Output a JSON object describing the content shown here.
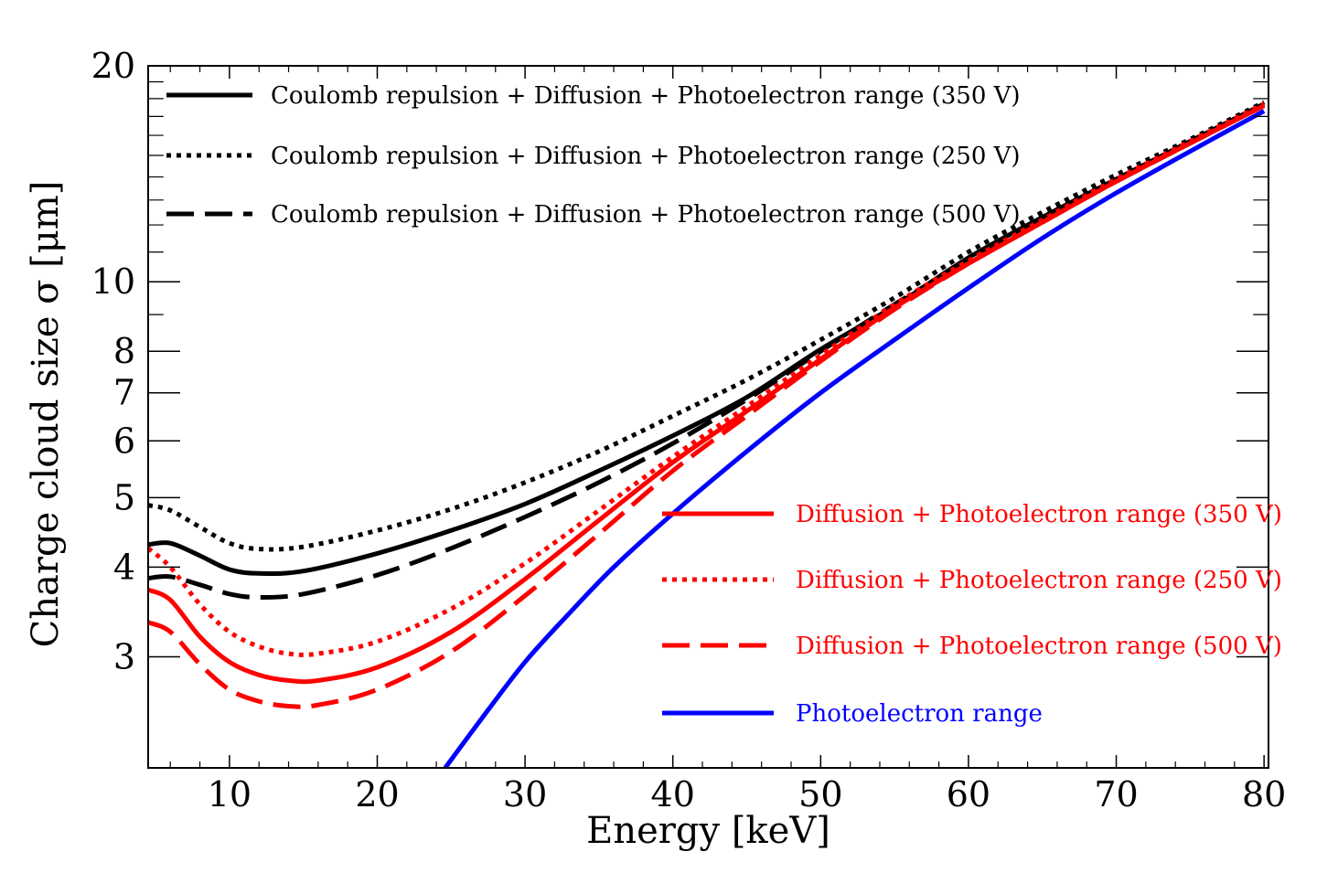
{
  "chart_data": {
    "type": "line",
    "xlabel": "Energy [keV]",
    "ylabel": "Charge cloud size σ [μm]",
    "xlim": [
      4.5,
      80.3
    ],
    "ylim": [
      2.1,
      20
    ],
    "yscale": "log",
    "grid": false,
    "legend_placement": [
      "upper-left",
      "lower-right"
    ],
    "x_ticks": [
      10,
      20,
      30,
      40,
      50,
      60,
      70,
      80
    ],
    "x_tick_labels": [
      "10",
      "20",
      "30",
      "40",
      "50",
      "60",
      "70",
      "80"
    ],
    "y_ticks": [
      3,
      4,
      5,
      6,
      7,
      8,
      10,
      20
    ],
    "y_tick_labels": [
      "3",
      "4",
      "5",
      "6",
      "7",
      "8",
      "10",
      "20"
    ],
    "series": [
      {
        "name": "Coulomb repulsion + Diffusion + Photoelectron range (350 V)",
        "color": "#000000",
        "dash": "solid",
        "legend_group": 0,
        "x": [
          4.5,
          6,
          8,
          10,
          12,
          15,
          20,
          25,
          30,
          35,
          40,
          45,
          50,
          55,
          60,
          65,
          70,
          75,
          80
        ],
        "y": [
          4.3,
          4.32,
          4.15,
          3.97,
          3.92,
          3.95,
          4.18,
          4.5,
          4.9,
          5.45,
          6.1,
          6.9,
          8.05,
          9.25,
          10.8,
          12.3,
          13.9,
          15.7,
          17.7
        ]
      },
      {
        "name": "Coulomb repulsion + Diffusion + Photoelectron range (250 V)",
        "color": "#000000",
        "dash": "dotted",
        "legend_group": 0,
        "x": [
          4.5,
          6,
          8,
          10,
          12,
          15,
          20,
          25,
          30,
          35,
          40,
          45,
          50,
          55,
          60,
          65,
          70,
          75,
          80
        ],
        "y": [
          4.88,
          4.8,
          4.55,
          4.32,
          4.24,
          4.27,
          4.5,
          4.82,
          5.25,
          5.8,
          6.5,
          7.3,
          8.3,
          9.5,
          11.0,
          12.5,
          14.1,
          15.8,
          17.8
        ]
      },
      {
        "name": "Coulomb repulsion + Diffusion + Photoelectron range (500 V)",
        "color": "#000000",
        "dash": "longdash",
        "legend_group": 0,
        "x": [
          4.5,
          6,
          8,
          10,
          12,
          15,
          20,
          25,
          30,
          35,
          40,
          45,
          50,
          55,
          60,
          65,
          70,
          75,
          80
        ],
        "y": [
          3.86,
          3.88,
          3.78,
          3.67,
          3.63,
          3.67,
          3.9,
          4.25,
          4.7,
          5.25,
          5.95,
          6.85,
          8.0,
          9.3,
          10.7,
          12.2,
          13.8,
          15.6,
          17.6
        ]
      },
      {
        "name": "Diffusion + Photoelectron range (350 V)",
        "color": "#ff0000",
        "dash": "solid",
        "legend_group": 1,
        "x": [
          4.5,
          6,
          8,
          10,
          12,
          14,
          16,
          20,
          25,
          30,
          35,
          40,
          45,
          50,
          55,
          60,
          65,
          70,
          75,
          80
        ],
        "y": [
          3.72,
          3.6,
          3.2,
          2.95,
          2.83,
          2.78,
          2.78,
          2.9,
          3.25,
          3.85,
          4.65,
          5.6,
          6.6,
          7.8,
          9.2,
          10.6,
          12.1,
          13.8,
          15.6,
          17.6
        ]
      },
      {
        "name": "Diffusion + Photoelectron range (250 V)",
        "color": "#ff0000",
        "dash": "dotted",
        "legend_group": 1,
        "x": [
          4.5,
          6,
          8,
          10,
          12,
          14,
          16,
          20,
          25,
          30,
          35,
          40,
          45,
          50,
          55,
          60,
          65,
          70,
          75,
          80
        ],
        "y": [
          4.25,
          4.0,
          3.55,
          3.25,
          3.1,
          3.03,
          3.03,
          3.15,
          3.5,
          4.05,
          4.8,
          5.7,
          6.7,
          7.9,
          9.3,
          10.7,
          12.2,
          13.9,
          15.7,
          17.7
        ]
      },
      {
        "name": "Diffusion + Photoelectron range (500 V)",
        "color": "#ff0000",
        "dash": "longdash",
        "legend_group": 1,
        "x": [
          4.5,
          6,
          8,
          10,
          12,
          14,
          16,
          20,
          25,
          30,
          35,
          40,
          45,
          50,
          55,
          60,
          65,
          70,
          75,
          80
        ],
        "y": [
          3.35,
          3.25,
          2.93,
          2.7,
          2.6,
          2.56,
          2.57,
          2.7,
          3.05,
          3.65,
          4.45,
          5.45,
          6.5,
          7.75,
          9.15,
          10.6,
          12.1,
          13.8,
          15.6,
          17.6
        ]
      },
      {
        "name": "Photoelectron range",
        "color": "#0000ff",
        "dash": "solid",
        "legend_group": 1,
        "x": [
          24.6,
          27,
          30,
          33,
          36,
          40,
          45,
          50,
          55,
          60,
          65,
          70,
          75,
          80
        ],
        "y": [
          2.1,
          2.45,
          2.95,
          3.45,
          4.0,
          4.75,
          5.8,
          7.0,
          8.3,
          9.8,
          11.5,
          13.3,
          15.2,
          17.3
        ]
      }
    ]
  }
}
